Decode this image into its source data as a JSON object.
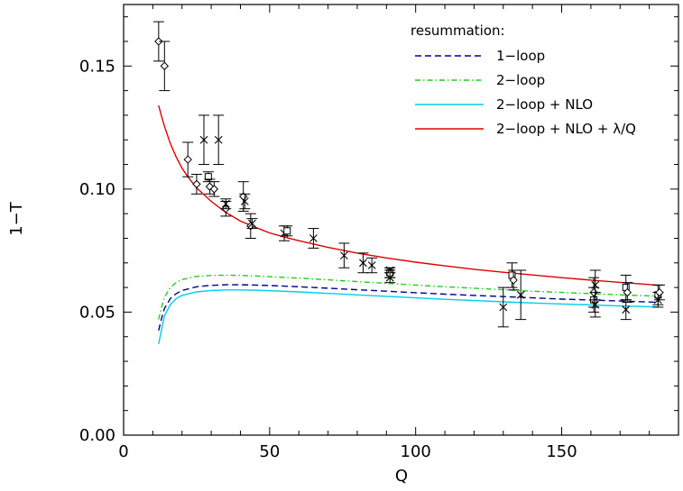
{
  "chart_data": {
    "type": "scatter",
    "title": "",
    "xlabel": "Q",
    "ylabel": "1−T",
    "xlim": [
      0,
      190
    ],
    "ylim": [
      0,
      0.175
    ],
    "grid": false,
    "xticks": [
      0,
      50,
      100,
      150
    ],
    "xtick_labels": [
      "0",
      "50",
      "100",
      "150"
    ],
    "yticks": [
      0,
      0.05,
      0.1,
      0.15
    ],
    "ytick_labels": [
      "0.00",
      "0.05",
      "0.10",
      "0.15"
    ],
    "legend": {
      "title": "resummation:",
      "placement": "top-right",
      "entries": [
        {
          "label": "1−loop",
          "color": "#00008b",
          "dash": "dashed"
        },
        {
          "label": "2−loop",
          "color": "#22cc22",
          "dash": "dashdot"
        },
        {
          "label": "2−loop + NLO",
          "color": "#00ccee",
          "dash": "solid"
        },
        {
          "label": "2−loop + NLO + λ/Q",
          "color": "#dd0000",
          "dash": "solid"
        }
      ]
    },
    "series": [
      {
        "name": "1−loop",
        "color": "#00008b",
        "dash": "dashed",
        "x": [
          12,
          13,
          14,
          16,
          18,
          20,
          25,
          30,
          35,
          40,
          45,
          50,
          60,
          70,
          80,
          90,
          100,
          110,
          120,
          130,
          140,
          150,
          160,
          170,
          180,
          183
        ],
        "y": [
          0.0425,
          0.0475,
          0.0515,
          0.0555,
          0.0575,
          0.0588,
          0.0603,
          0.0609,
          0.0611,
          0.0611,
          0.061,
          0.0608,
          0.0603,
          0.0597,
          0.0591,
          0.0585,
          0.0579,
          0.0573,
          0.0568,
          0.0563,
          0.0558,
          0.0553,
          0.0549,
          0.0545,
          0.0541,
          0.054
        ]
      },
      {
        "name": "2−loop",
        "color": "#22cc22",
        "dash": "dashdot",
        "x": [
          12,
          13,
          14,
          16,
          18,
          20,
          25,
          30,
          35,
          40,
          45,
          50,
          60,
          70,
          80,
          90,
          100,
          110,
          120,
          130,
          140,
          150,
          160,
          170,
          180,
          183
        ],
        "y": [
          0.047,
          0.052,
          0.056,
          0.06,
          0.062,
          0.0632,
          0.0645,
          0.0649,
          0.065,
          0.0649,
          0.0647,
          0.0644,
          0.0638,
          0.0631,
          0.0624,
          0.0617,
          0.061,
          0.0603,
          0.0597,
          0.0591,
          0.0585,
          0.058,
          0.0575,
          0.057,
          0.0566,
          0.0565
        ]
      },
      {
        "name": "2−loop + NLO",
        "color": "#00ccee",
        "dash": "solid",
        "x": [
          12,
          13,
          14,
          16,
          18,
          20,
          25,
          30,
          35,
          40,
          45,
          50,
          60,
          70,
          80,
          90,
          100,
          110,
          120,
          130,
          140,
          150,
          160,
          170,
          180,
          183
        ],
        "y": [
          0.037,
          0.043,
          0.0485,
          0.053,
          0.0555,
          0.0568,
          0.0582,
          0.0588,
          0.059,
          0.059,
          0.0589,
          0.0587,
          0.0582,
          0.0576,
          0.057,
          0.0564,
          0.0558,
          0.0552,
          0.0547,
          0.0542,
          0.0537,
          0.0533,
          0.0529,
          0.0525,
          0.0522,
          0.0521
        ]
      },
      {
        "name": "2−loop + NLO + λ/Q",
        "color": "#dd0000",
        "dash": "solid",
        "x": [
          12,
          13,
          14,
          16,
          18,
          20,
          22,
          25,
          30,
          35,
          40,
          45,
          50,
          55,
          60,
          70,
          80,
          90,
          100,
          110,
          120,
          130,
          140,
          150,
          160,
          170,
          180,
          183
        ],
        "y": [
          0.134,
          0.1295,
          0.1255,
          0.1185,
          0.113,
          0.1085,
          0.105,
          0.1005,
          0.095,
          0.0905,
          0.087,
          0.0845,
          0.0822,
          0.0805,
          0.079,
          0.0763,
          0.074,
          0.072,
          0.0703,
          0.0688,
          0.0674,
          0.0662,
          0.0651,
          0.064,
          0.063,
          0.0621,
          0.0612,
          0.0609
        ]
      }
    ],
    "points": [
      {
        "x": 12.0,
        "y": 0.16,
        "err": 0.008,
        "marker": "diamond"
      },
      {
        "x": 14.0,
        "y": 0.15,
        "err": 0.01,
        "marker": "diamond"
      },
      {
        "x": 22.0,
        "y": 0.112,
        "err": 0.007,
        "marker": "diamond"
      },
      {
        "x": 25.0,
        "y": 0.102,
        "err": 0.004,
        "marker": "diamond"
      },
      {
        "x": 27.5,
        "y": 0.12,
        "err": 0.01,
        "marker": "cross"
      },
      {
        "x": 29.0,
        "y": 0.105,
        "err": 0.002,
        "marker": "square"
      },
      {
        "x": 29.5,
        "y": 0.101,
        "err": 0.003,
        "marker": "diamond"
      },
      {
        "x": 31.0,
        "y": 0.1,
        "err": 0.003,
        "marker": "diamond"
      },
      {
        "x": 32.5,
        "y": 0.12,
        "err": 0.01,
        "marker": "cross"
      },
      {
        "x": 35.0,
        "y": 0.092,
        "err": 0.003,
        "marker": "diamond"
      },
      {
        "x": 35.0,
        "y": 0.094,
        "err": 0.002,
        "marker": "cross"
      },
      {
        "x": 41.0,
        "y": 0.097,
        "err": 0.006,
        "marker": "diamond"
      },
      {
        "x": 41.5,
        "y": 0.095,
        "err": 0.003,
        "marker": "cross"
      },
      {
        "x": 43.5,
        "y": 0.085,
        "err": 0.005,
        "marker": "diamond"
      },
      {
        "x": 44.0,
        "y": 0.086,
        "err": 0.002,
        "marker": "cross"
      },
      {
        "x": 55.0,
        "y": 0.082,
        "err": 0.003,
        "marker": "cross"
      },
      {
        "x": 56.0,
        "y": 0.083,
        "err": 0.002,
        "marker": "square"
      },
      {
        "x": 65.0,
        "y": 0.08,
        "err": 0.004,
        "marker": "cross"
      },
      {
        "x": 75.5,
        "y": 0.073,
        "err": 0.005,
        "marker": "cross"
      },
      {
        "x": 82.0,
        "y": 0.07,
        "err": 0.004,
        "marker": "cross"
      },
      {
        "x": 85.0,
        "y": 0.069,
        "err": 0.003,
        "marker": "cross"
      },
      {
        "x": 91.2,
        "y": 0.066,
        "err": 0.002,
        "marker": "square"
      },
      {
        "x": 91.2,
        "y": 0.067,
        "err": 0.001,
        "marker": "cross"
      },
      {
        "x": 91.2,
        "y": 0.0655,
        "err": 0.0015,
        "marker": "diamond"
      },
      {
        "x": 91.2,
        "y": 0.064,
        "err": 0.002,
        "marker": "cross"
      },
      {
        "x": 130.0,
        "y": 0.052,
        "err": 0.008,
        "marker": "cross"
      },
      {
        "x": 133.0,
        "y": 0.065,
        "err": 0.005,
        "marker": "square"
      },
      {
        "x": 133.5,
        "y": 0.063,
        "err": 0.004,
        "marker": "diamond"
      },
      {
        "x": 136.0,
        "y": 0.057,
        "err": 0.01,
        "marker": "cross"
      },
      {
        "x": 161.0,
        "y": 0.055,
        "err": 0.005,
        "marker": "square"
      },
      {
        "x": 161.0,
        "y": 0.058,
        "err": 0.006,
        "marker": "diamond"
      },
      {
        "x": 161.5,
        "y": 0.061,
        "err": 0.006,
        "marker": "cross"
      },
      {
        "x": 161.5,
        "y": 0.053,
        "err": 0.005,
        "marker": "cross"
      },
      {
        "x": 172.0,
        "y": 0.06,
        "err": 0.005,
        "marker": "square"
      },
      {
        "x": 172.0,
        "y": 0.051,
        "err": 0.004,
        "marker": "cross"
      },
      {
        "x": 172.5,
        "y": 0.058,
        "err": 0.004,
        "marker": "diamond"
      },
      {
        "x": 183.0,
        "y": 0.057,
        "err": 0.004,
        "marker": "square"
      },
      {
        "x": 183.0,
        "y": 0.055,
        "err": 0.003,
        "marker": "cross"
      },
      {
        "x": 183.5,
        "y": 0.058,
        "err": 0.003,
        "marker": "diamond"
      }
    ]
  }
}
